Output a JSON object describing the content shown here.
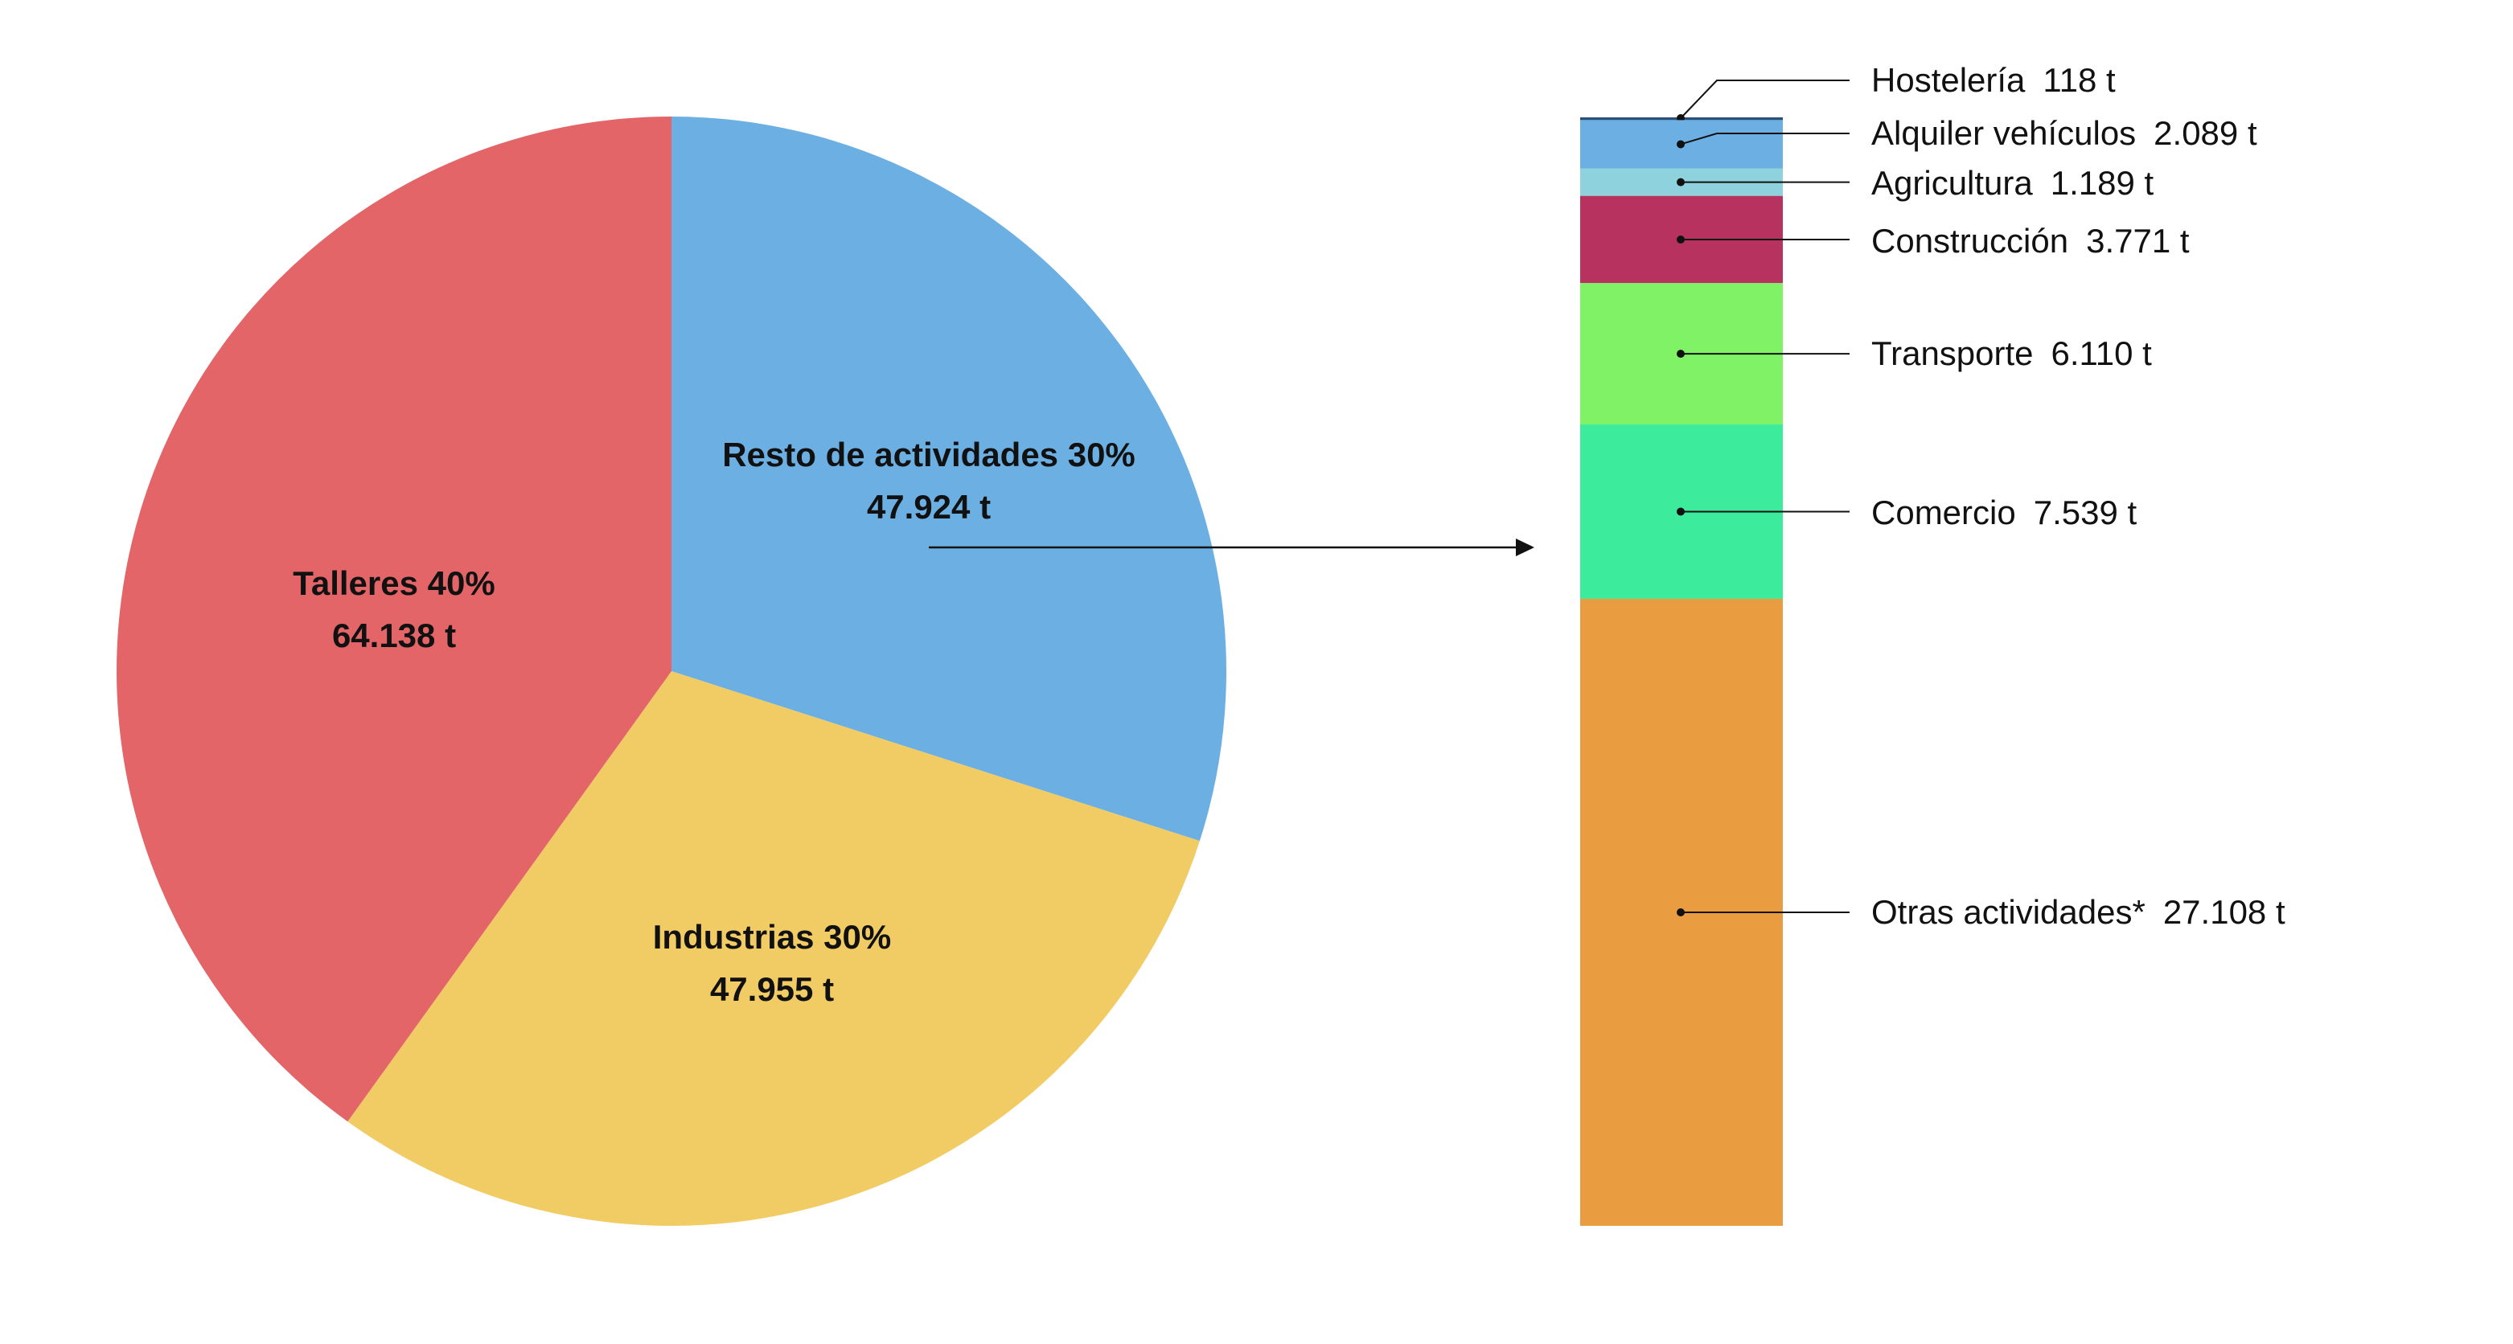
{
  "chart_data": [
    {
      "type": "pie",
      "title": "",
      "unit": "t",
      "slices": [
        {
          "name": "Resto de actividades",
          "percent": "30%",
          "value": 47924,
          "label_value": "47.924 t",
          "color": "#6cb0e3"
        },
        {
          "name": "Industrias",
          "percent": "30%",
          "value": 47955,
          "label_value": "47.955 t",
          "color": "#f1cb64"
        },
        {
          "name": "Talleres",
          "percent": "40%",
          "value": 64138,
          "label_value": "64.138 t",
          "color": "#e36567"
        }
      ],
      "exploded_slice": "Resto de actividades"
    },
    {
      "type": "bar",
      "orientation": "stacked-vertical",
      "title": "",
      "unit": "t",
      "segments": [
        {
          "name": "Hostelería",
          "value": 118,
          "label_value": "118 t",
          "color": "#2a4f78"
        },
        {
          "name": "Alquiler vehículos",
          "value": 2089,
          "label_value": "2.089 t",
          "color": "#6cb0e3"
        },
        {
          "name": "Agricultura",
          "value": 1189,
          "label_value": "1.189 t",
          "color": "#8dd2dc"
        },
        {
          "name": "Construcción",
          "value": 3771,
          "label_value": "3.771 t",
          "color": "#b83260"
        },
        {
          "name": "Transporte",
          "value": 6110,
          "label_value": "6.110 t",
          "color": "#7ff266"
        },
        {
          "name": "Comercio",
          "value": 7539,
          "label_value": "7.539 t",
          "color": "#3ceb9b"
        },
        {
          "name": "Otras actividades*",
          "value": 27108,
          "label_value": "27.108 t",
          "color": "#e99c40"
        }
      ]
    }
  ]
}
